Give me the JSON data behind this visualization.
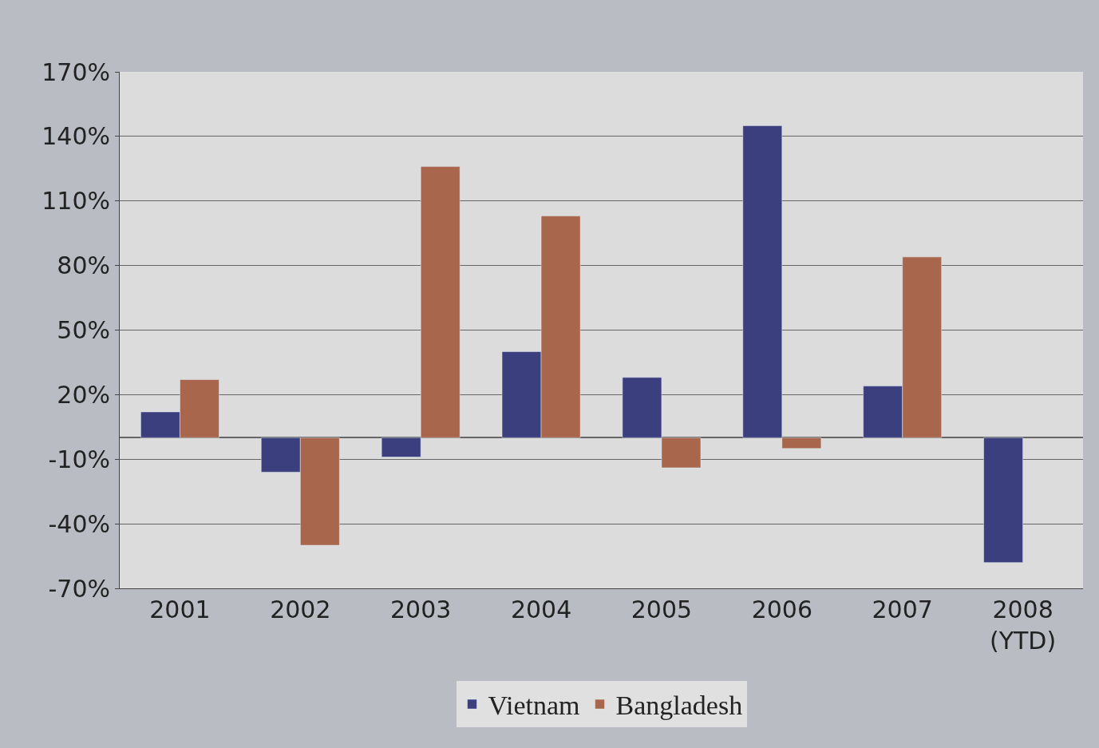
{
  "chart_data": {
    "type": "bar",
    "categories": [
      "2001",
      "2002",
      "2003",
      "2004",
      "2005",
      "2006",
      "2007",
      "2008\n(YTD)"
    ],
    "series": [
      {
        "name": "Vietnam",
        "color": "#3b3f7e",
        "values": [
          12,
          -16,
          -9,
          40,
          28,
          145,
          24,
          -58
        ]
      },
      {
        "name": "Bangladesh",
        "color": "#a8674c",
        "values": [
          27,
          -50,
          126,
          103,
          -14,
          -5,
          84,
          null
        ]
      }
    ],
    "ylim": [
      -70,
      170
    ],
    "yticks": [
      {
        "value": 170,
        "label": "170%"
      },
      {
        "value": 140,
        "label": "140%"
      },
      {
        "value": 110,
        "label": "110%"
      },
      {
        "value": 80,
        "label": "80%"
      },
      {
        "value": 50,
        "label": "50%"
      },
      {
        "value": 20,
        "label": "20%"
      },
      {
        "value": -10,
        "label": "-10%"
      },
      {
        "value": -40,
        "label": "-40%"
      },
      {
        "value": -70,
        "label": "-70%"
      }
    ],
    "grid": "y",
    "legend": "bottom"
  }
}
